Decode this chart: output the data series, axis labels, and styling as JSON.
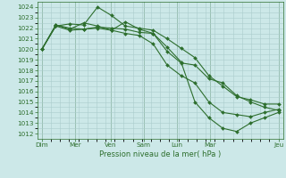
{
  "xlabel": "Pression niveau de la mer( hPa )",
  "ylim": [
    1011.5,
    1024.5
  ],
  "yticks": [
    1012,
    1013,
    1014,
    1015,
    1016,
    1017,
    1018,
    1019,
    1020,
    1021,
    1022,
    1023,
    1024
  ],
  "bg_color": "#cce8e8",
  "grid_color": "#aacccc",
  "line_color": "#2d6e2d",
  "series": [
    [
      1020.0,
      1022.2,
      1021.8,
      1021.9,
      1022.1,
      1022.0,
      1021.9,
      1021.6,
      1021.5,
      1019.8,
      1018.7,
      1018.5,
      1017.2,
      1016.8,
      1015.6,
      1015.0,
      1014.5,
      1014.2
    ],
    [
      1020.0,
      1022.3,
      1022.0,
      1021.9,
      1022.0,
      1021.8,
      1021.5,
      1021.3,
      1020.5,
      1018.5,
      1017.5,
      1016.8,
      1015.0,
      1014.0,
      1013.8,
      1013.6,
      1014.0,
      1014.3
    ],
    [
      1020.0,
      1022.2,
      1022.4,
      1022.3,
      1024.0,
      1023.2,
      1022.2,
      1022.0,
      1021.8,
      1021.0,
      1020.1,
      1019.2,
      1017.5,
      1016.5,
      1015.5,
      1015.2,
      1014.8,
      1014.8
    ],
    [
      1020.0,
      1022.3,
      1021.9,
      1022.5,
      1022.2,
      1021.8,
      1022.6,
      1021.9,
      1021.5,
      1020.2,
      1018.8,
      1015.0,
      1013.5,
      1012.5,
      1012.2,
      1013.0,
      1013.5,
      1014.0
    ]
  ],
  "xtick_lab": [
    "Dim",
    "Mer",
    "Ven",
    "Sam",
    "Lun",
    "Mar",
    "Jeu"
  ]
}
